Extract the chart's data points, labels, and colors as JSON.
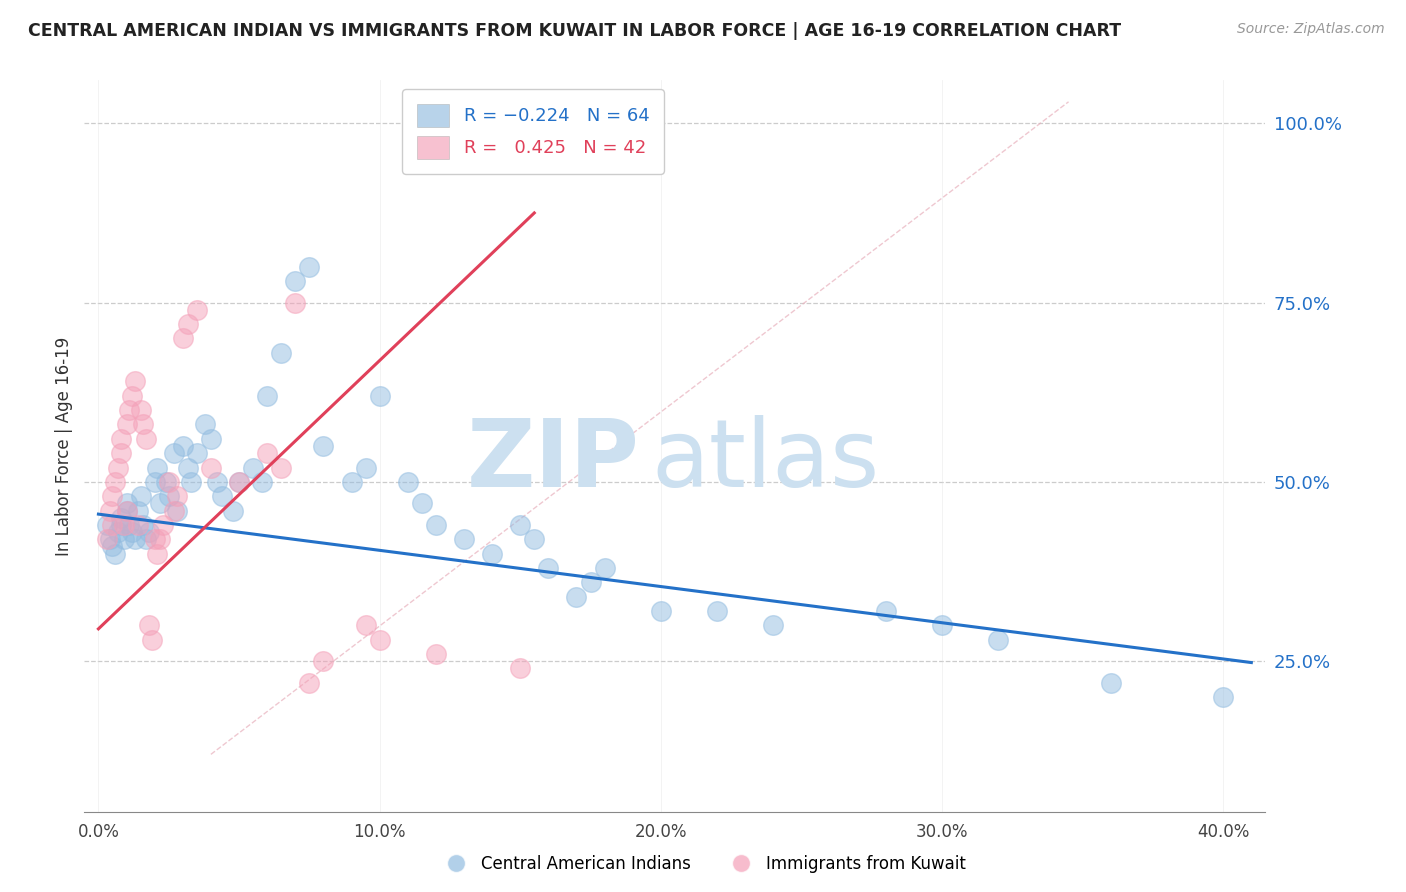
{
  "title": "CENTRAL AMERICAN INDIAN VS IMMIGRANTS FROM KUWAIT IN LABOR FORCE | AGE 16-19 CORRELATION CHART",
  "source": "Source: ZipAtlas.com",
  "ylabel": "In Labor Force | Age 16-19",
  "x_tick_labels": [
    "0.0%",
    "",
    "",
    "",
    "",
    "10.0%",
    "",
    "",
    "",
    "",
    "20.0%",
    "",
    "",
    "",
    "",
    "30.0%",
    "",
    "",
    "",
    "",
    "40.0%"
  ],
  "x_tick_vals": [
    0.0,
    0.02,
    0.04,
    0.06,
    0.08,
    0.1,
    0.12,
    0.14,
    0.16,
    0.18,
    0.2,
    0.22,
    0.24,
    0.26,
    0.28,
    0.3,
    0.32,
    0.34,
    0.36,
    0.38,
    0.4
  ],
  "x_tick_labels_sparse": [
    "0.0%",
    "10.0%",
    "20.0%",
    "30.0%",
    "40.0%"
  ],
  "x_tick_vals_sparse": [
    0.0,
    0.1,
    0.2,
    0.3,
    0.4
  ],
  "y_tick_labels": [
    "25.0%",
    "50.0%",
    "75.0%",
    "100.0%"
  ],
  "y_tick_vals": [
    0.25,
    0.5,
    0.75,
    1.0
  ],
  "xlim": [
    -0.005,
    0.415
  ],
  "ylim": [
    0.04,
    1.06
  ],
  "blue_color": "#92bce0",
  "pink_color": "#f4a0b8",
  "blue_line_color": "#2471c8",
  "pink_line_color": "#e0405a",
  "diag_line_color": "#c8c8c8",
  "watermark_zip": "ZIP",
  "watermark_atlas": "atlas",
  "watermark_color": "#cce0f0",
  "blue_scatter_x": [
    0.003,
    0.004,
    0.005,
    0.006,
    0.007,
    0.008,
    0.008,
    0.009,
    0.01,
    0.01,
    0.011,
    0.012,
    0.013,
    0.014,
    0.015,
    0.016,
    0.017,
    0.018,
    0.02,
    0.021,
    0.022,
    0.024,
    0.025,
    0.027,
    0.028,
    0.03,
    0.032,
    0.033,
    0.035,
    0.038,
    0.04,
    0.042,
    0.044,
    0.048,
    0.05,
    0.055,
    0.058,
    0.06,
    0.065,
    0.07,
    0.075,
    0.08,
    0.09,
    0.095,
    0.1,
    0.11,
    0.115,
    0.12,
    0.13,
    0.14,
    0.15,
    0.155,
    0.16,
    0.17,
    0.175,
    0.18,
    0.2,
    0.22,
    0.24,
    0.28,
    0.3,
    0.32,
    0.36,
    0.4
  ],
  "blue_scatter_y": [
    0.44,
    0.42,
    0.41,
    0.4,
    0.43,
    0.44,
    0.45,
    0.42,
    0.46,
    0.47,
    0.44,
    0.43,
    0.42,
    0.46,
    0.48,
    0.44,
    0.42,
    0.43,
    0.5,
    0.52,
    0.47,
    0.5,
    0.48,
    0.54,
    0.46,
    0.55,
    0.52,
    0.5,
    0.54,
    0.58,
    0.56,
    0.5,
    0.48,
    0.46,
    0.5,
    0.52,
    0.5,
    0.62,
    0.68,
    0.78,
    0.8,
    0.55,
    0.5,
    0.52,
    0.62,
    0.5,
    0.47,
    0.44,
    0.42,
    0.4,
    0.44,
    0.42,
    0.38,
    0.34,
    0.36,
    0.38,
    0.32,
    0.32,
    0.3,
    0.32,
    0.3,
    0.28,
    0.22,
    0.2
  ],
  "pink_scatter_x": [
    0.003,
    0.004,
    0.005,
    0.005,
    0.006,
    0.007,
    0.008,
    0.008,
    0.009,
    0.01,
    0.01,
    0.011,
    0.012,
    0.013,
    0.014,
    0.015,
    0.016,
    0.017,
    0.018,
    0.019,
    0.02,
    0.021,
    0.022,
    0.023,
    0.025,
    0.027,
    0.028,
    0.03,
    0.032,
    0.035,
    0.04,
    0.05,
    0.06,
    0.065,
    0.07,
    0.075,
    0.08,
    0.095,
    0.1,
    0.12,
    0.15,
    0.18
  ],
  "pink_scatter_y": [
    0.42,
    0.46,
    0.44,
    0.48,
    0.5,
    0.52,
    0.54,
    0.56,
    0.44,
    0.46,
    0.58,
    0.6,
    0.62,
    0.64,
    0.44,
    0.6,
    0.58,
    0.56,
    0.3,
    0.28,
    0.42,
    0.4,
    0.42,
    0.44,
    0.5,
    0.46,
    0.48,
    0.7,
    0.72,
    0.74,
    0.52,
    0.5,
    0.54,
    0.52,
    0.75,
    0.22,
    0.25,
    0.3,
    0.28,
    0.26,
    0.24,
    1.0
  ],
  "blue_line_x": [
    0.0,
    0.41
  ],
  "blue_line_y": [
    0.455,
    0.248
  ],
  "pink_line_x": [
    0.0,
    0.155
  ],
  "pink_line_y": [
    0.295,
    0.875
  ],
  "diag_line_x": [
    0.04,
    0.345
  ],
  "diag_line_y": [
    0.12,
    1.03
  ]
}
